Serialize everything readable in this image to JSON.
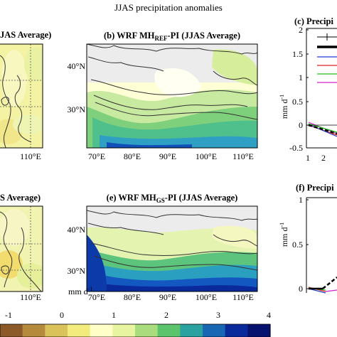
{
  "figure": {
    "suptitle": "JJAS precipitation anomalies",
    "colorbar": {
      "unit": "mm d",
      "unit_exp": "-1",
      "ticks": [
        "-1",
        "0",
        "1",
        "2",
        "3",
        "4"
      ],
      "colors": [
        "#8c5a28",
        "#b58a3c",
        "#d9c25a",
        "#f2ec7c",
        "#ffffc8",
        "#e8f5a0",
        "#a8dc7c",
        "#5cc46c",
        "#2aa3a0",
        "#1866b4",
        "#0a2a9c",
        "#07126e"
      ]
    },
    "panel_a": {
      "title_visible": "JAS Average)",
      "lon_tick": "110°E"
    },
    "panel_b": {
      "title_pre": "(b) WRF MH",
      "title_sub": "REF",
      "title_post": "-PI (JJAS Average)",
      "lat_ticks": [
        "40°N",
        "30°N"
      ],
      "lon_ticks": [
        "70°E",
        "80°E",
        "90°E",
        "100°E",
        "110°E"
      ]
    },
    "panel_d": {
      "title_visible": "S Average)",
      "lon_tick": "110°E"
    },
    "panel_e": {
      "title_pre": "(e) WRF MH",
      "title_sub": "GS",
      "title_post": "-PI (JJAS Average)",
      "lat_ticks": [
        "40°N",
        "30°N"
      ],
      "lon_ticks": [
        "70°E",
        "80°E",
        "90°E",
        "100°E",
        "110°E"
      ]
    },
    "panel_c": {
      "title_visible": "(c) Precipi",
      "ylabel": "mm d",
      "ylabel_exp": "-1",
      "y_ticks": [
        "2",
        "1.5",
        "1",
        "0.5",
        "0",
        "-0.5"
      ],
      "x_ticks": [
        "1",
        "2"
      ]
    },
    "panel_f": {
      "title_visible": "(f) Precipi",
      "ylabel": "mm d",
      "ylabel_exp": "-1",
      "y_ticks": [
        "1",
        "0.5",
        "0"
      ]
    },
    "legend_colors": [
      "#000000",
      "#000000",
      "#1f3fd0",
      "#e02020",
      "#20c020",
      "#d020d0"
    ]
  }
}
